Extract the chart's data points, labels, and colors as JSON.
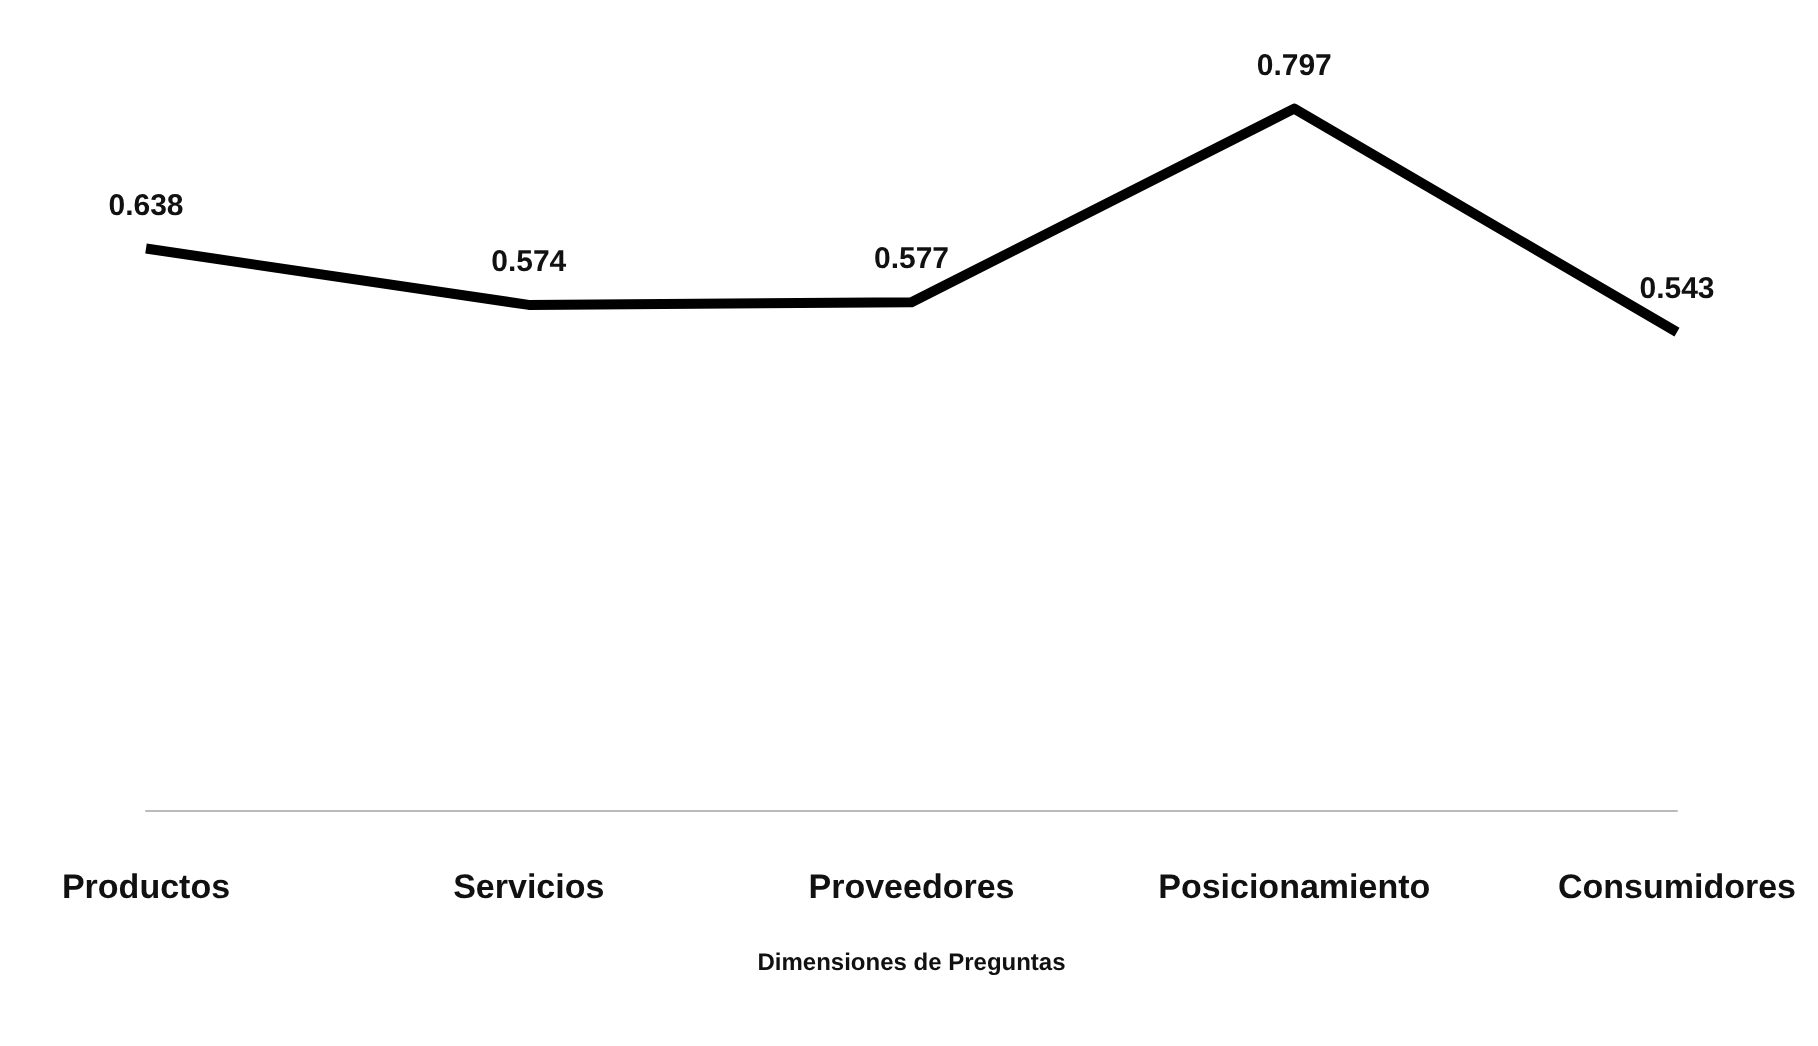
{
  "chart_data": {
    "type": "line",
    "xlabel": "Dimensiones de Preguntas",
    "categories": [
      "Productos",
      "Servicios",
      "Proveedores",
      "Posicionamiento",
      "Consumidores"
    ],
    "series": [
      {
        "color": "#000000",
        "values": [
          0.638,
          0.574,
          0.577,
          0.797,
          0.543
        ]
      }
    ],
    "tick_labels": "x",
    "data_labels": true,
    "marker": "none",
    "grid": false
  }
}
